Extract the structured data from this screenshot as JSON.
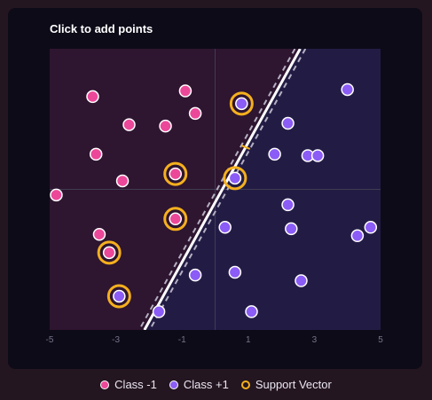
{
  "instruction": "Click to add points",
  "legend": [
    {
      "label": "Class -1",
      "kind": "neg"
    },
    {
      "label": "Class +1",
      "kind": "pos"
    },
    {
      "label": "Support Vector",
      "kind": "sv"
    }
  ],
  "colors": {
    "class_neg": "#ec4899",
    "class_pos": "#8b5cf6",
    "support_vector": "#f5b01e",
    "boundary": "#ffffff",
    "margin": "#b5b0c2",
    "region_neg": "#2e1530",
    "region_pos": "#221c45"
  },
  "chart_data": {
    "type": "scatter",
    "xlim": [
      -5,
      5
    ],
    "ylim": [
      -5,
      5
    ],
    "x_ticks": [
      "-5",
      "-3",
      "-1",
      "1",
      "3",
      "5"
    ],
    "boundary": {
      "w": [
        -1.7,
        0.8
      ],
      "b": 0.37
    },
    "margin_half_width": 0.27,
    "points": [
      {
        "x": -3.7,
        "y": 3.3,
        "class": -1
      },
      {
        "x": -0.9,
        "y": 3.5,
        "class": -1
      },
      {
        "x": -0.6,
        "y": 2.7,
        "class": -1
      },
      {
        "x": -2.6,
        "y": 2.3,
        "class": -1
      },
      {
        "x": -1.5,
        "y": 2.25,
        "class": -1
      },
      {
        "x": -3.6,
        "y": 1.25,
        "class": -1
      },
      {
        "x": -2.8,
        "y": 0.3,
        "class": -1
      },
      {
        "x": -4.8,
        "y": -0.2,
        "class": -1
      },
      {
        "x": -3.5,
        "y": -1.6,
        "class": -1
      },
      {
        "x": -1.2,
        "y": 0.55,
        "class": -1,
        "sv": true
      },
      {
        "x": -1.2,
        "y": -1.05,
        "class": -1,
        "sv": true
      },
      {
        "x": -3.2,
        "y": -2.25,
        "class": -1,
        "sv": true
      },
      {
        "x": 0.8,
        "y": 3.05,
        "class": 1,
        "sv": true
      },
      {
        "x": 0.6,
        "y": 0.4,
        "class": 1,
        "sv": true
      },
      {
        "x": -2.9,
        "y": -3.8,
        "class": 1,
        "sv": true
      },
      {
        "x": 4.0,
        "y": 3.55,
        "class": 1
      },
      {
        "x": 2.2,
        "y": 2.35,
        "class": 1
      },
      {
        "x": 1.8,
        "y": 1.25,
        "class": 1
      },
      {
        "x": 2.8,
        "y": 1.2,
        "class": 1
      },
      {
        "x": 3.1,
        "y": 1.2,
        "class": 1
      },
      {
        "x": 2.2,
        "y": -0.55,
        "class": 1
      },
      {
        "x": 0.3,
        "y": -1.35,
        "class": 1
      },
      {
        "x": 2.3,
        "y": -1.4,
        "class": 1
      },
      {
        "x": 4.7,
        "y": -1.35,
        "class": 1
      },
      {
        "x": 4.3,
        "y": -1.65,
        "class": 1
      },
      {
        "x": -0.6,
        "y": -3.05,
        "class": 1
      },
      {
        "x": 0.6,
        "y": -2.95,
        "class": 1
      },
      {
        "x": 2.6,
        "y": -3.25,
        "class": 1
      },
      {
        "x": -1.7,
        "y": -4.35,
        "class": 1
      },
      {
        "x": 1.1,
        "y": -4.35,
        "class": 1
      }
    ]
  }
}
